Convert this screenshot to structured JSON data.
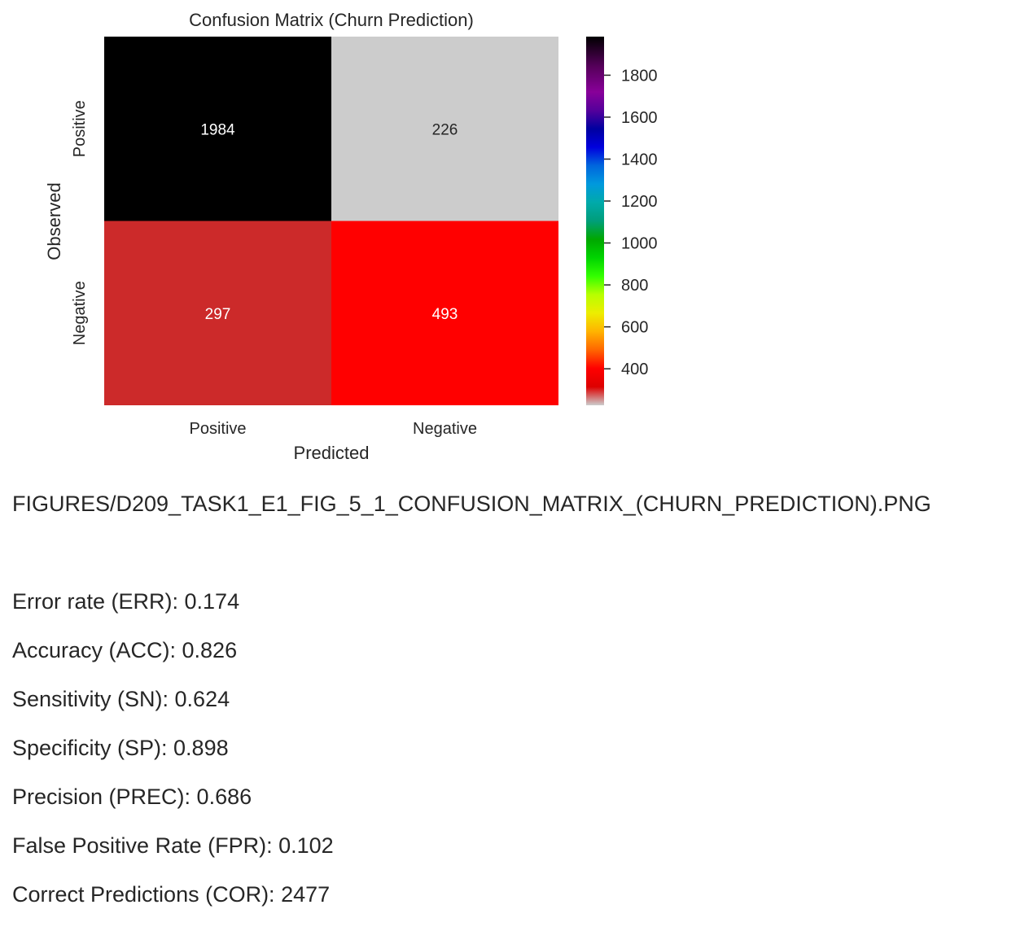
{
  "chart_data": {
    "type": "heatmap",
    "title": "Confusion Matrix (Churn Prediction)",
    "xlabel": "Predicted",
    "ylabel": "Observed",
    "x_categories": [
      "Positive",
      "Negative"
    ],
    "y_categories": [
      "Positive",
      "Negative"
    ],
    "values": [
      [
        1984,
        226
      ],
      [
        297,
        493
      ]
    ],
    "cell_colors": [
      [
        "#000000",
        "#cccccc"
      ],
      [
        "#cc2a2a",
        "#ff0000"
      ]
    ],
    "label_colors": [
      [
        "#ffffff",
        "#262626"
      ],
      [
        "#ffffff",
        "#ffffff"
      ]
    ],
    "colorbar": {
      "range": [
        226,
        1984
      ],
      "ticks": [
        400,
        600,
        800,
        1000,
        1200,
        1400,
        1600,
        1800
      ],
      "colormap": "nipy_spectral_r"
    },
    "grid": false
  },
  "caption": "FIGURES/D209_TASK1_E1_FIG_5_1_CONFUSION_MATRIX_(CHURN_PREDICTION).PNG",
  "metrics": [
    "Error rate (ERR): 0.174",
    "Accuracy (ACC): 0.826",
    "Sensitivity (SN): 0.624",
    "Specificity (SP): 0.898",
    "Precision (PREC): 0.686",
    "False Positive Rate (FPR): 0.102",
    "Correct Predictions (COR): 2477"
  ]
}
